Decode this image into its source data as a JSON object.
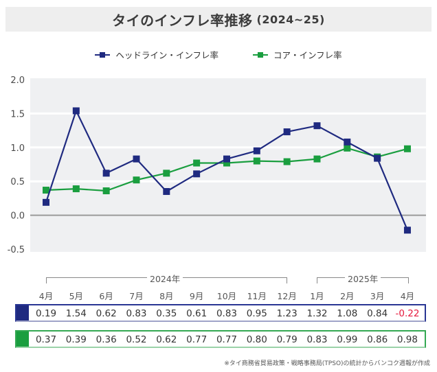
{
  "title": {
    "main": "タイのインフレ率推移",
    "sub": "(2024~25)"
  },
  "legend": [
    {
      "label": "ヘッドライン・インフレ率",
      "color": "#1f2a80"
    },
    {
      "label": "コア・インフレ率",
      "color": "#1a9e3f"
    }
  ],
  "years": {
    "y2024": "2024年",
    "y2025": "2025年"
  },
  "footnote": "※タイ商務省貿易政策・戦略事務局(TPSO)の統計からバンコク週報が作成",
  "table": {
    "headline": [
      "0.19",
      "1.54",
      "0.62",
      "0.83",
      "0.35",
      "0.61",
      "0.83",
      "0.95",
      "1.23",
      "1.32",
      "1.08",
      "0.84",
      "-0.22"
    ],
    "core": [
      "0.37",
      "0.39",
      "0.36",
      "0.52",
      "0.62",
      "0.77",
      "0.77",
      "0.80",
      "0.79",
      "0.83",
      "0.99",
      "0.86",
      "0.98"
    ]
  },
  "chart_data": {
    "type": "line",
    "title": "タイのインフレ率推移 (2024~25)",
    "xlabel": "",
    "ylabel": "",
    "categories": [
      "4月",
      "5月",
      "6月",
      "7月",
      "8月",
      "9月",
      "10月",
      "11月",
      "12月",
      "1月",
      "2月",
      "3月",
      "4月"
    ],
    "category_groups": [
      {
        "label": "2024年",
        "from": "4月",
        "to": "12月"
      },
      {
        "label": "2025年",
        "from": "1月",
        "to": "4月"
      }
    ],
    "series": [
      {
        "name": "ヘッドライン・インフレ率",
        "color": "#1f2a80",
        "values": [
          0.19,
          1.54,
          0.62,
          0.83,
          0.35,
          0.61,
          0.83,
          0.95,
          1.23,
          1.32,
          1.08,
          0.84,
          -0.22
        ]
      },
      {
        "name": "コア・インフレ率",
        "color": "#1a9e3f",
        "values": [
          0.37,
          0.39,
          0.36,
          0.52,
          0.62,
          0.77,
          0.77,
          0.8,
          0.79,
          0.83,
          0.99,
          0.86,
          0.98
        ]
      }
    ],
    "yticks": [
      "2.0",
      "1.5",
      "1.0",
      "0.5",
      "0.0",
      "-0.5"
    ],
    "ylim": [
      -0.5,
      2.0
    ],
    "grid": true,
    "legend_position": "top-center"
  }
}
